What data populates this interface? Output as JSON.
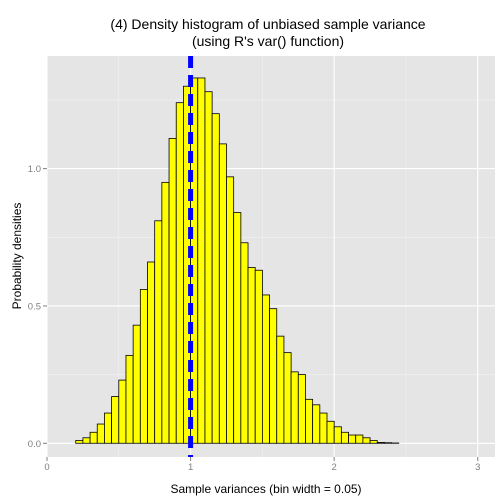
{
  "chart_data": {
    "type": "bar",
    "title_lines": [
      "(4) Density histogram of unbiased sample variance",
      "(using R's var() function)"
    ],
    "xlabel": "Sample variances (bin width = 0.05)",
    "ylabel": "Probability densities",
    "xlim": [
      0,
      3.12
    ],
    "ylim": [
      -0.05,
      1.41
    ],
    "x_ticks": [
      {
        "value": 0,
        "label": "0"
      },
      {
        "value": 1,
        "label": "1"
      },
      {
        "value": 2,
        "label": "2"
      },
      {
        "value": 3,
        "label": "3"
      }
    ],
    "y_ticks": [
      {
        "value": 0,
        "label": "0.0"
      },
      {
        "value": 0.5,
        "label": "0.5"
      },
      {
        "value": 1,
        "label": "1.0"
      }
    ],
    "bin_width": 0.05,
    "bin_start": 0.1,
    "densities": [
      0,
      0,
      0.01,
      0.02,
      0.04,
      0.07,
      0.11,
      0.17,
      0.23,
      0.32,
      0.43,
      0.56,
      0.66,
      0.81,
      0.95,
      1.11,
      1.24,
      1.3,
      1.33,
      1.33,
      1.28,
      1.2,
      1.09,
      0.97,
      0.84,
      0.73,
      0.64,
      0.63,
      0.54,
      0.49,
      0.39,
      0.33,
      0.26,
      0.25,
      0.16,
      0.14,
      0.11,
      0.08,
      0.06,
      0.04,
      0.03,
      0.03,
      0.02,
      0.01,
      0.003,
      0.002,
      0.001,
      0,
      0,
      0,
      0,
      0,
      0,
      0,
      0,
      0,
      0,
      0
    ],
    "vline": {
      "x": 1,
      "color": "#0000ff",
      "style": "dashed"
    },
    "fill_color": "#ffff00",
    "outline_color": "#000000",
    "panel_color": "#e5e5e5",
    "grid": true,
    "legend": "none"
  }
}
